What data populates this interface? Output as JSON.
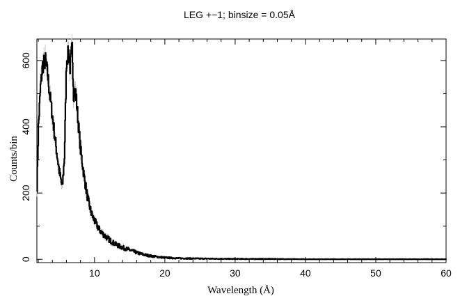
{
  "chart_data": {
    "type": "line",
    "title": "LEG +−1; binsize = 0.05Å",
    "xlabel": "Wavelength (Å)",
    "ylabel": "Counts/bin",
    "xlim": [
      1.8,
      60
    ],
    "ylim": [
      -10,
      665
    ],
    "x_ticks": [
      10,
      20,
      30,
      40,
      50,
      60
    ],
    "x_tick_labels": [
      "10",
      "20",
      "30",
      "40",
      "50",
      "60"
    ],
    "y_ticks": [
      0,
      200,
      400,
      600
    ],
    "y_tick_labels": [
      "0",
      "200",
      "400",
      "600"
    ],
    "grid": false,
    "legend": "none",
    "colors": {
      "line": "#000000",
      "error": "#bbbbbb",
      "axes": "#000000"
    },
    "series": [
      {
        "x": [
          1.8,
          2.0,
          2.3,
          2.6,
          3.0,
          3.3,
          3.6,
          4.0,
          4.5,
          5.0,
          5.4,
          5.7,
          6.0,
          6.3,
          6.5,
          6.8,
          7.0,
          7.3,
          7.6,
          8.0,
          8.5,
          9.0,
          9.5,
          10.0,
          10.5,
          11.0,
          12.0,
          13.0,
          14.0,
          15.0,
          16.0,
          17.0,
          18.0,
          19.0,
          20.0,
          22.0,
          25.0,
          30.0,
          35.0,
          40.0,
          45.0,
          50.0,
          55.0,
          60.0
        ],
        "y": [
          220,
          400,
          520,
          585,
          600,
          560,
          500,
          430,
          340,
          260,
          215,
          310,
          600,
          625,
          580,
          640,
          500,
          505,
          430,
          330,
          250,
          185,
          140,
          115,
          95,
          80,
          60,
          45,
          35,
          28,
          20,
          14,
          10,
          7,
          5,
          3,
          2,
          1,
          1,
          0,
          0,
          0,
          0,
          0
        ]
      }
    ]
  }
}
